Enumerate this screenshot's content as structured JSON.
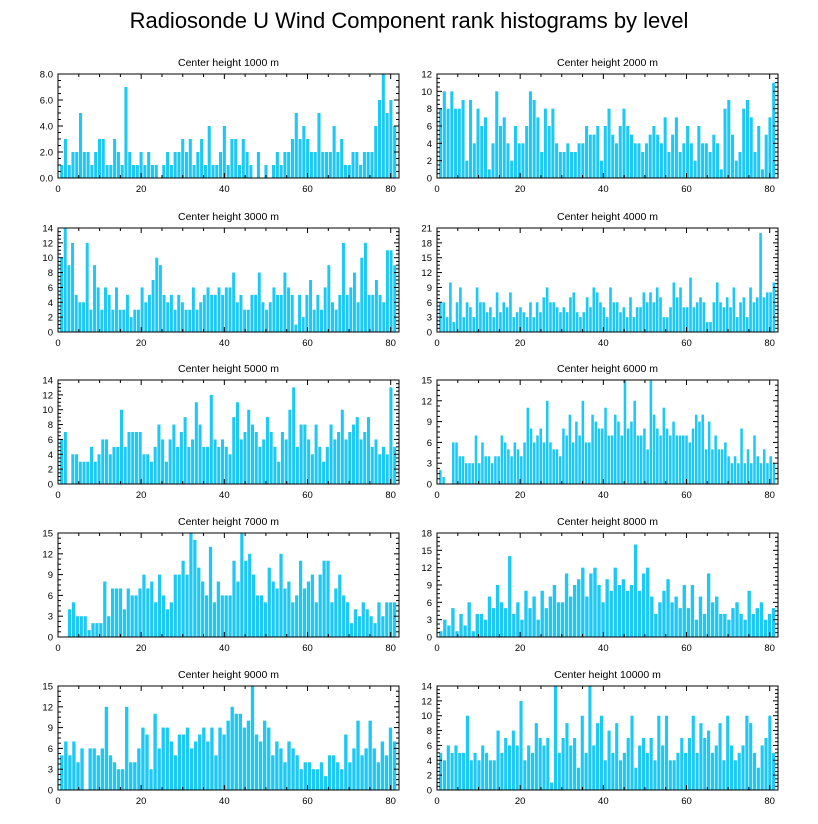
{
  "figure": {
    "title": "Radiosonde U Wind Component rank histograms by level",
    "bar_color": "#1ec8f5"
  },
  "chart_data": [
    {
      "type": "bar",
      "title": "Center height 1000 m",
      "xlim": [
        0,
        82
      ],
      "xticks": [
        0,
        20,
        40,
        60,
        80
      ],
      "ylim": [
        0,
        8
      ],
      "yticks": [
        0,
        2,
        4,
        6,
        8
      ],
      "ytick_labels": [
        "0.0",
        "2.0",
        "4.0",
        "6.0",
        "8.0"
      ],
      "values": [
        1,
        3,
        1,
        2,
        2,
        5,
        2,
        2,
        1,
        2,
        3,
        3,
        1,
        1,
        3,
        2,
        1,
        7,
        2,
        1,
        1,
        2,
        1,
        2,
        1,
        1,
        0,
        1,
        2,
        1,
        2,
        2,
        3,
        2,
        3,
        1,
        2,
        3,
        1,
        4,
        1,
        1,
        2,
        4,
        1,
        3,
        3,
        1,
        3,
        2,
        1,
        0,
        2,
        0,
        1,
        0,
        1,
        2,
        1,
        2,
        2,
        3,
        5,
        3,
        4,
        3,
        2,
        2,
        5,
        2,
        2,
        2,
        4,
        2,
        3,
        1,
        1,
        2,
        2,
        1,
        2,
        2,
        2,
        4,
        6,
        8,
        5,
        6,
        4
      ]
    },
    {
      "type": "bar",
      "title": "Center height 2000 m",
      "xlim": [
        0,
        82
      ],
      "xticks": [
        0,
        20,
        40,
        60,
        80
      ],
      "ylim": [
        0,
        12
      ],
      "yticks": [
        0,
        2,
        4,
        6,
        8,
        10,
        12
      ],
      "ytick_labels": [
        "0",
        "2",
        "4",
        "6",
        "8",
        "10",
        "12"
      ],
      "values": [
        8,
        10,
        8,
        10,
        8,
        8,
        9,
        2,
        9,
        4,
        8,
        6,
        7,
        1,
        4,
        10,
        6,
        7,
        4,
        2,
        6,
        4,
        4,
        6,
        10,
        9,
        7,
        3,
        8,
        6,
        8,
        4,
        3,
        3,
        4,
        3,
        3,
        4,
        4,
        6,
        5,
        5,
        6,
        2,
        6,
        8,
        5,
        4,
        6,
        8,
        6,
        5,
        4,
        4,
        3,
        4,
        5,
        6,
        5,
        4,
        7,
        3,
        5,
        7,
        3,
        4,
        6,
        4,
        2,
        6,
        4,
        4,
        3,
        5,
        4,
        1,
        8,
        9,
        5,
        2,
        3,
        8,
        9,
        7,
        3,
        6,
        1,
        5,
        7,
        11
      ]
    },
    {
      "type": "bar",
      "title": "Center height 3000 m",
      "xlim": [
        0,
        82
      ],
      "xticks": [
        0,
        20,
        40,
        60,
        80
      ],
      "ylim": [
        0,
        14
      ],
      "yticks": [
        0,
        2,
        4,
        6,
        8,
        10,
        12,
        14
      ],
      "ytick_labels": [
        "0",
        "2",
        "4",
        "6",
        "8",
        "10",
        "12",
        "14"
      ],
      "values": [
        10,
        14,
        9,
        12,
        5,
        4,
        4,
        12,
        3,
        9,
        6,
        3,
        6,
        5,
        3,
        6,
        3,
        3,
        5,
        2,
        3,
        3,
        6,
        4,
        5,
        7,
        10,
        9,
        5,
        4,
        5,
        3,
        5,
        4,
        3,
        3,
        6,
        3,
        4,
        5,
        6,
        5,
        5,
        6,
        5,
        6,
        6,
        8,
        4,
        5,
        3,
        3,
        5,
        5,
        8,
        4,
        3,
        4,
        6,
        5,
        5,
        8,
        6,
        5,
        1,
        5,
        2,
        5,
        7,
        3,
        5,
        3,
        6,
        9,
        4,
        3,
        5,
        12,
        5,
        6,
        8,
        4,
        10,
        12,
        5,
        5,
        7,
        5,
        4,
        11,
        11,
        9
      ]
    },
    {
      "type": "bar",
      "title": "Center height 4000 m",
      "xlim": [
        0,
        82
      ],
      "xticks": [
        0,
        20,
        40,
        60,
        80
      ],
      "ylim": [
        0,
        21
      ],
      "yticks": [
        0,
        3,
        6,
        9,
        12,
        15,
        18,
        21
      ],
      "ytick_labels": [
        "0",
        "3",
        "6",
        "9",
        "12",
        "15",
        "18",
        "21"
      ],
      "values": [
        6,
        6,
        3,
        10,
        2,
        6,
        9,
        3,
        6,
        5,
        3,
        9,
        6,
        6,
        4,
        5,
        3,
        8,
        4,
        6,
        5,
        8,
        3,
        4,
        5,
        4,
        3,
        6,
        3,
        6,
        4,
        7,
        9,
        6,
        6,
        5,
        4,
        5,
        4,
        7,
        8,
        4,
        3,
        4,
        7,
        5,
        9,
        8,
        6,
        5,
        3,
        9,
        6,
        6,
        4,
        5,
        3,
        7,
        3,
        5,
        5,
        8,
        6,
        8,
        6,
        9,
        7,
        3,
        3,
        5,
        10,
        7,
        9,
        5,
        5,
        11,
        5,
        6,
        7,
        6,
        2,
        2,
        6,
        10,
        6,
        5,
        7,
        5,
        9,
        3,
        6,
        7,
        3,
        9,
        6,
        7,
        20,
        7,
        8,
        8,
        10
      ]
    },
    {
      "type": "bar",
      "title": "Center height 5000 m",
      "xlim": [
        0,
        82
      ],
      "xticks": [
        0,
        20,
        40,
        60,
        80
      ],
      "ylim": [
        0,
        14
      ],
      "yticks": [
        0,
        2,
        4,
        6,
        8,
        10,
        12,
        14
      ],
      "ytick_labels": [
        "0",
        "2",
        "4",
        "6",
        "8",
        "10",
        "12",
        "14"
      ],
      "values": [
        6,
        7,
        0,
        4,
        4,
        3,
        3,
        3,
        5,
        3,
        4,
        6,
        6,
        4,
        5,
        5,
        10,
        5,
        7,
        7,
        7,
        7,
        4,
        4,
        3,
        5,
        8,
        6,
        3,
        6,
        8,
        5,
        7,
        9,
        5,
        6,
        11,
        8,
        5,
        5,
        12,
        6,
        5,
        6,
        5,
        4,
        9,
        11,
        6,
        7,
        10,
        8,
        7,
        5,
        6,
        9,
        7,
        5,
        3,
        7,
        6,
        10,
        13,
        5,
        8,
        8,
        6,
        4,
        8,
        5,
        3,
        5,
        8,
        6,
        7,
        10,
        6,
        7,
        8,
        9,
        6,
        7,
        9,
        5,
        6,
        4,
        5,
        4,
        13,
        5
      ]
    },
    {
      "type": "bar",
      "title": "Center height 6000 m",
      "xlim": [
        0,
        82
      ],
      "xticks": [
        0,
        20,
        40,
        60,
        80
      ],
      "ylim": [
        0,
        15
      ],
      "yticks": [
        0,
        3,
        6,
        9,
        12,
        15
      ],
      "ytick_labels": [
        "0",
        "3",
        "6",
        "9",
        "12",
        "15"
      ],
      "values": [
        2,
        1,
        0,
        0,
        6,
        6,
        4,
        4,
        3,
        3,
        3,
        7,
        3,
        6,
        4,
        4,
        3,
        4,
        4,
        7,
        6,
        5,
        4,
        6,
        5,
        4,
        6,
        11,
        8,
        6,
        7,
        8,
        6,
        12,
        6,
        5,
        5,
        4,
        8,
        7,
        10,
        6,
        9,
        7,
        12,
        6,
        6,
        10,
        9,
        8,
        8,
        11,
        7,
        7,
        10,
        9,
        7,
        15,
        8,
        9,
        12,
        7,
        7,
        8,
        5,
        15,
        10,
        8,
        7,
        11,
        8,
        7,
        9,
        7,
        7,
        7,
        7,
        6,
        8,
        10,
        9,
        10,
        5,
        9,
        5,
        7,
        5,
        5,
        6,
        4,
        3,
        4,
        3,
        8,
        3,
        5,
        3,
        7,
        4,
        3,
        5,
        3,
        4,
        3
      ]
    },
    {
      "type": "bar",
      "title": "Center height 7000 m",
      "xlim": [
        0,
        82
      ],
      "xticks": [
        0,
        20,
        40,
        60,
        80
      ],
      "ylim": [
        0,
        15
      ],
      "yticks": [
        0,
        3,
        6,
        9,
        12,
        15
      ],
      "ytick_labels": [
        "0",
        "3",
        "6",
        "9",
        "12",
        "15"
      ],
      "values": [
        0,
        0,
        4,
        5,
        3,
        3,
        3,
        1,
        2,
        2,
        2,
        8,
        3,
        7,
        7,
        7,
        4,
        7,
        6,
        6,
        7,
        9,
        7,
        8,
        5,
        9,
        6,
        4,
        5,
        9,
        9,
        11,
        9,
        15,
        14,
        10,
        8,
        6,
        13,
        5,
        8,
        6,
        6,
        6,
        11,
        8,
        15,
        11,
        12,
        9,
        6,
        6,
        5,
        10,
        8,
        7,
        12,
        7,
        8,
        5,
        6,
        11,
        7,
        8,
        9,
        5,
        9,
        11,
        11,
        5,
        7,
        9,
        6,
        5,
        2,
        4,
        3,
        5,
        4,
        3,
        2,
        5,
        3,
        5,
        5,
        5
      ]
    },
    {
      "type": "bar",
      "title": "Center height 8000 m",
      "xlim": [
        0,
        82
      ],
      "xticks": [
        0,
        20,
        40,
        60,
        80
      ],
      "ylim": [
        0,
        18
      ],
      "yticks": [
        0,
        3,
        6,
        9,
        12,
        15,
        18
      ],
      "ytick_labels": [
        "0",
        "3",
        "6",
        "9",
        "12",
        "15",
        "18"
      ],
      "values": [
        1,
        3,
        2,
        5,
        1,
        4,
        2,
        6,
        1,
        4,
        4,
        3,
        7,
        5,
        9,
        6,
        5,
        14,
        4,
        6,
        3,
        8,
        5,
        7,
        3,
        8,
        5,
        7,
        9,
        6,
        6,
        11,
        7,
        9,
        10,
        12,
        7,
        11,
        12,
        9,
        6,
        10,
        8,
        12,
        9,
        10,
        8,
        9,
        16,
        8,
        11,
        12,
        7,
        4,
        6,
        8,
        10,
        6,
        7,
        5,
        9,
        5,
        9,
        3,
        7,
        4,
        11,
        6,
        7,
        4,
        4,
        3,
        5,
        6,
        4,
        3,
        8,
        4,
        5,
        6,
        3,
        4,
        5
      ]
    },
    {
      "type": "bar",
      "title": "Center height 9000 m",
      "xlim": [
        0,
        82
      ],
      "xticks": [
        0,
        20,
        40,
        60,
        80
      ],
      "ylim": [
        0,
        15
      ],
      "yticks": [
        0,
        3,
        6,
        9,
        12,
        15
      ],
      "ytick_labels": [
        "0",
        "3",
        "6",
        "9",
        "12",
        "15"
      ],
      "values": [
        5,
        7,
        5,
        7,
        4,
        6,
        0,
        6,
        6,
        5,
        6,
        12,
        5,
        4,
        3,
        3,
        12,
        4,
        4,
        6,
        9,
        8,
        3,
        11,
        6,
        9,
        9,
        7,
        5,
        8,
        8,
        9,
        6,
        7,
        8,
        9,
        7,
        9,
        5,
        9,
        8,
        10,
        12,
        11,
        11,
        9,
        10,
        15,
        8,
        7,
        10,
        9,
        5,
        7,
        6,
        4,
        7,
        6,
        5,
        3,
        4,
        4,
        3,
        3,
        4,
        2,
        5,
        5,
        4,
        3,
        8,
        4,
        6,
        10,
        5,
        6,
        10,
        6,
        4,
        7,
        5,
        9,
        7
      ]
    },
    {
      "type": "bar",
      "title": "Center height 10000 m",
      "xlim": [
        0,
        82
      ],
      "xticks": [
        0,
        20,
        40,
        60,
        80
      ],
      "ylim": [
        0,
        14
      ],
      "yticks": [
        0,
        2,
        4,
        6,
        8,
        10,
        12,
        14
      ],
      "ytick_labels": [
        "0",
        "2",
        "4",
        "6",
        "8",
        "10",
        "12",
        "14"
      ],
      "values": [
        5,
        4,
        6,
        5,
        6,
        5,
        5,
        10,
        4,
        5,
        4,
        6,
        5,
        4,
        4,
        8,
        5,
        7,
        6,
        8,
        6,
        12,
        4,
        6,
        5,
        9,
        7,
        6,
        7,
        1,
        14,
        5,
        7,
        9,
        6,
        7,
        3,
        10,
        5,
        14,
        6,
        9,
        10,
        4,
        8,
        5,
        9,
        4,
        5,
        7,
        10,
        3,
        6,
        7,
        5,
        7,
        4,
        10,
        6,
        10,
        4,
        4,
        5,
        7,
        5,
        7,
        10,
        5,
        9,
        7,
        8,
        5,
        6,
        9,
        4,
        10,
        6,
        4,
        5,
        6,
        10,
        9,
        5,
        3,
        6,
        7,
        10,
        5
      ]
    }
  ]
}
